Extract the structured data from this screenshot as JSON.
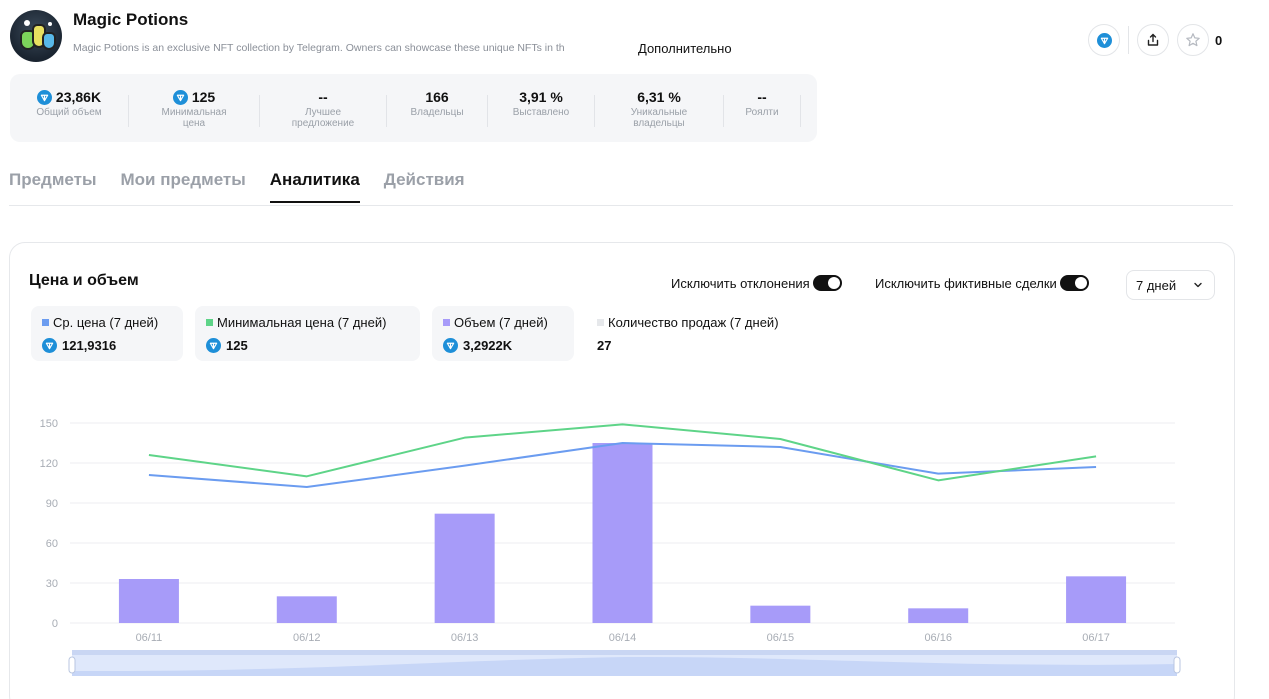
{
  "collection": {
    "title": "Magic Potions",
    "description": "Magic Potions is an exclusive NFT collection by Telegram. Owners can showcase these unique NFTs in th",
    "more_label": "Дополнительно",
    "favorites_count": "0"
  },
  "stats": [
    {
      "value": "23,86K",
      "label": "Общий объем",
      "ton": true
    },
    {
      "value": "125",
      "label": "Минимальная цена",
      "ton": true
    },
    {
      "value": "--",
      "label": "Лучшее предложение",
      "ton": false
    },
    {
      "value": "166",
      "label": "Владельцы",
      "ton": false
    },
    {
      "value": "3,91 %",
      "label": "Выставлено",
      "ton": false
    },
    {
      "value": "6,31 %",
      "label": "Уникальные владельцы",
      "ton": false
    },
    {
      "value": "--",
      "label": "Роялти",
      "ton": false
    }
  ],
  "tabs": [
    {
      "label": "Предметы",
      "active": false
    },
    {
      "label": "Мои предметы",
      "active": false
    },
    {
      "label": "Аналитика",
      "active": true
    },
    {
      "label": "Действия",
      "active": false
    }
  ],
  "analytics": {
    "title": "Цена и объем",
    "toggle_outliers": "Исключить отклонения",
    "toggle_fake": "Исключить фиктивные сделки",
    "period": "7 дней"
  },
  "legend": [
    {
      "name": "Ср. цена (7 дней)",
      "value": "121,9316",
      "color": "#6b9cf0",
      "ton": true
    },
    {
      "name": "Минимальная цена (7 дней)",
      "value": "125",
      "color": "#5ed488",
      "ton": true
    },
    {
      "name": "Объем (7 дней)",
      "value": "3,2922K",
      "color": "#a79bf9",
      "ton": true
    },
    {
      "name": "Количество продаж (7 дней)",
      "value": "27",
      "color": "#e6e8eb",
      "ton": false
    }
  ],
  "chart_data": {
    "type": "bar",
    "categories": [
      "06/11",
      "06/12",
      "06/13",
      "06/14",
      "06/15",
      "06/16",
      "06/17"
    ],
    "yticks": [
      0,
      30,
      60,
      90,
      120,
      150
    ],
    "ylim": [
      0,
      150
    ],
    "series": [
      {
        "name": "Объем (7 дней)",
        "type": "bar",
        "color": "#a79bf9",
        "values": [
          33,
          20,
          82,
          135,
          13,
          11,
          35
        ]
      },
      {
        "name": "Ср. цена (7 дней)",
        "type": "line",
        "color": "#6b9cf0",
        "values": [
          111,
          102,
          118,
          135,
          132,
          112,
          117
        ]
      },
      {
        "name": "Минимальная цена (7 дней)",
        "type": "line",
        "color": "#5ed488",
        "values": [
          126,
          110,
          139,
          149,
          138,
          107,
          125
        ]
      }
    ],
    "grid": true
  }
}
